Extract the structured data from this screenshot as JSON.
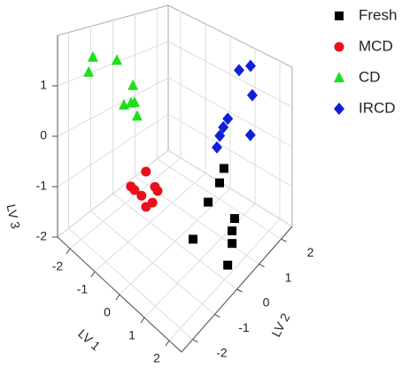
{
  "chart_data": {
    "type": "scatter3d",
    "xlabel": "LV 1",
    "ylabel": "LV 2",
    "zlabel": "LV 3",
    "xlim": [
      -2.5,
      2.5
    ],
    "ylim": [
      -2.5,
      2.5
    ],
    "zlim": [
      -2,
      2
    ],
    "xticks": [
      -2,
      -1,
      0,
      1,
      2
    ],
    "yticks": [
      -2,
      -1,
      0,
      1,
      2
    ],
    "zticks": [
      -2,
      -1,
      0,
      1
    ],
    "grid": true,
    "legend": "upper right",
    "series": [
      {
        "name": "Fresh",
        "color": "#000000",
        "marker": "square",
        "x": [
          2.06,
          0.67,
          1.88,
          1.69,
          1.56,
          0.87,
          1.08,
          1.14
        ],
        "y": [
          0.08,
          0.07,
          0.48,
          0.69,
          0.95,
          0.53,
          0.81,
          0.94
        ],
        "z": [
          -1.7,
          -1.7,
          -1.5,
          -1.4,
          -1.3,
          -1.0,
          -0.6,
          -0.3
        ]
      },
      {
        "name": "MCD",
        "color": "#e8101a",
        "marker": "circle",
        "x": [
          -0.4,
          -0.55,
          -0.39,
          -0.07,
          0.09,
          -0.23,
          0.16,
          0.14
        ],
        "y": [
          -0.86,
          -1.37,
          -1.39,
          -0.82,
          -0.88,
          -1.25,
          -1.19,
          -1.46
        ],
        "z": [
          -0.3,
          -0.5,
          -0.5,
          -0.5,
          -0.5,
          -0.6,
          -0.6,
          -0.6
        ]
      },
      {
        "name": "CD",
        "color": "#1be01b",
        "marker": "triangle",
        "x": [
          -2.02,
          -1.59,
          -1.89,
          -0.96,
          -0.93,
          -0.88,
          -0.84,
          -0.52
        ],
        "y": [
          -1.44,
          -0.84,
          -1.78,
          -0.82,
          -1.26,
          -1.0,
          -0.88,
          -1.12
        ],
        "z": [
          1.6,
          1.6,
          1.4,
          1.3,
          1.0,
          1.0,
          1.0,
          0.9
        ]
      },
      {
        "name": "IRCD",
        "color": "#1020d8",
        "marker": "diamond",
        "x": [
          1.17,
          1.4,
          1.73,
          1.75,
          1.41,
          1.31,
          1.23,
          1.25
        ],
        "y": [
          1.59,
          1.85,
          1.56,
          1.45,
          0.81,
          0.72,
          0.65,
          0.5
        ],
        "z": [
          1.8,
          1.9,
          1.4,
          0.5,
          1.0,
          0.8,
          0.6,
          0.4
        ]
      }
    ]
  }
}
